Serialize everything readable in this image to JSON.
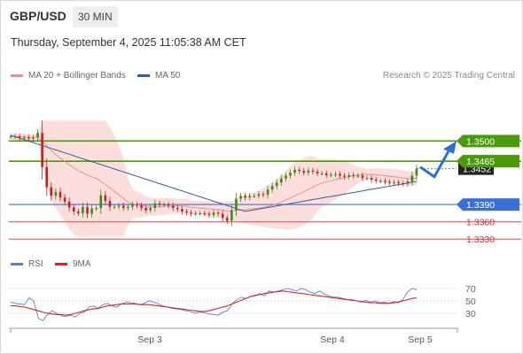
{
  "header": {
    "symbol": "GBP/USD",
    "timeframe": "30 MIN"
  },
  "datetime": "Thursday, September 4, 2025 11:05:38 AM CET",
  "legend": {
    "ma20": {
      "label": "MA 20 + Bollinger Bands",
      "color": "#f08c8c"
    },
    "ma50": {
      "label": "MA 50",
      "color": "#2f5f9f"
    }
  },
  "copyright": "Research © 2025 Trading Central",
  "rsi_legend": {
    "rsi": {
      "label": "RSI",
      "color": "#5b7fd6"
    },
    "ma9": {
      "label": "9MA",
      "color": "#e02020"
    }
  },
  "colors": {
    "up": "#3a8a1a",
    "down": "#c82020",
    "green_level": "#4a9a0a",
    "blue_level": "#3a6fd8",
    "red_level": "#e86a6a"
  },
  "chart_data": [
    {
      "type": "candlestick",
      "title": "GBP/USD 30 MIN",
      "x_tick_labels": [
        "Sep 3",
        "Sep 4",
        "Sep 5"
      ],
      "y_range": [
        1.3315,
        1.3545
      ],
      "current_price": "1.3452",
      "levels": [
        {
          "value": 1.35,
          "label": "1.3500",
          "kind": "resistance",
          "color": "#4a9a0a"
        },
        {
          "value": 1.3465,
          "label": "1.3465",
          "kind": "resistance",
          "color": "#4a9a0a"
        },
        {
          "value": 1.339,
          "label": "1.3390",
          "kind": "pivot",
          "color": "#3a6fd8"
        },
        {
          "value": 1.336,
          "label": "1.3360",
          "kind": "support",
          "color": "#e86a6a"
        },
        {
          "value": 1.333,
          "label": "1.3330",
          "kind": "support",
          "color": "#e86a6a"
        }
      ],
      "closes": [
        1.3508,
        1.3508,
        1.3506,
        1.3506,
        1.3504,
        1.3506,
        1.3514,
        1.3455,
        1.342,
        1.3405,
        1.3412,
        1.3402,
        1.3395,
        1.3385,
        1.3378,
        1.3375,
        1.3386,
        1.3374,
        1.3383,
        1.3384,
        1.3406,
        1.3396,
        1.3386,
        1.3386,
        1.3388,
        1.3384,
        1.3386,
        1.339,
        1.3388,
        1.3384,
        1.338,
        1.3384,
        1.3392,
        1.339,
        1.339,
        1.3388,
        1.3384,
        1.3382,
        1.3378,
        1.3376,
        1.3374,
        1.3375,
        1.3375,
        1.3374,
        1.3372,
        1.3376,
        1.3374,
        1.3367,
        1.3362,
        1.338,
        1.34,
        1.3405,
        1.3402,
        1.3405,
        1.3405,
        1.3408,
        1.3407,
        1.3416,
        1.3422,
        1.3428,
        1.3435,
        1.344,
        1.3445,
        1.345,
        1.3448,
        1.3445,
        1.3449,
        1.3447,
        1.3444,
        1.3444,
        1.3441,
        1.3442,
        1.3443,
        1.344,
        1.3438,
        1.3441,
        1.344,
        1.344,
        1.3436,
        1.3436,
        1.3433,
        1.3431,
        1.3431,
        1.3429,
        1.3428,
        1.3429,
        1.3427,
        1.3426,
        1.343,
        1.344,
        1.3452
      ],
      "ma50": {
        "start_value": 1.351,
        "min_value": 1.3378,
        "end_value": 1.343
      },
      "bollinger_upper_peak": 1.3535,
      "bollinger_lower_min": 1.3335
    },
    {
      "type": "line",
      "title": "RSI",
      "y_ticks": [
        "70",
        "50",
        "30"
      ],
      "y_range": [
        10,
        90
      ],
      "series": [
        {
          "name": "RSI",
          "values": [
            48,
            46,
            45,
            44,
            55,
            50,
            22,
            18,
            28,
            34,
            30,
            26,
            25,
            27,
            24,
            30,
            32,
            40,
            42,
            38,
            44,
            46,
            42,
            40,
            45,
            48,
            47,
            46,
            44,
            46,
            50,
            48,
            45,
            42,
            40,
            38,
            37,
            36,
            34,
            33,
            30,
            32,
            31,
            29,
            28,
            27,
            32,
            34,
            45,
            52,
            56,
            54,
            57,
            58,
            62,
            58,
            66,
            64,
            66,
            68,
            70,
            68,
            66,
            70,
            68,
            64,
            62,
            66,
            61,
            58,
            56,
            56,
            54,
            52,
            52,
            50,
            48,
            51,
            48,
            50,
            47,
            48,
            46,
            49,
            47,
            52,
            64,
            70,
            68
          ]
        },
        {
          "name": "9MA",
          "values": [
            42,
            42,
            41,
            40,
            38,
            36,
            34,
            32,
            30,
            29,
            28,
            28,
            27,
            28,
            30,
            32,
            34,
            36,
            37,
            38,
            40,
            42,
            43,
            44,
            45,
            45,
            45,
            45,
            44,
            44,
            44,
            43,
            42,
            41,
            40,
            39,
            38,
            37,
            36,
            35,
            34,
            33,
            33,
            34,
            36,
            38,
            40,
            42,
            45,
            48,
            51,
            54,
            57,
            59,
            60,
            62,
            63,
            64,
            65,
            66,
            65,
            64,
            63,
            62,
            61,
            60,
            59,
            58,
            57,
            56,
            55,
            54,
            53,
            52,
            51,
            50,
            49,
            48,
            47,
            47,
            46,
            46,
            46,
            47,
            48,
            50,
            52,
            54,
            55
          ]
        }
      ]
    }
  ]
}
